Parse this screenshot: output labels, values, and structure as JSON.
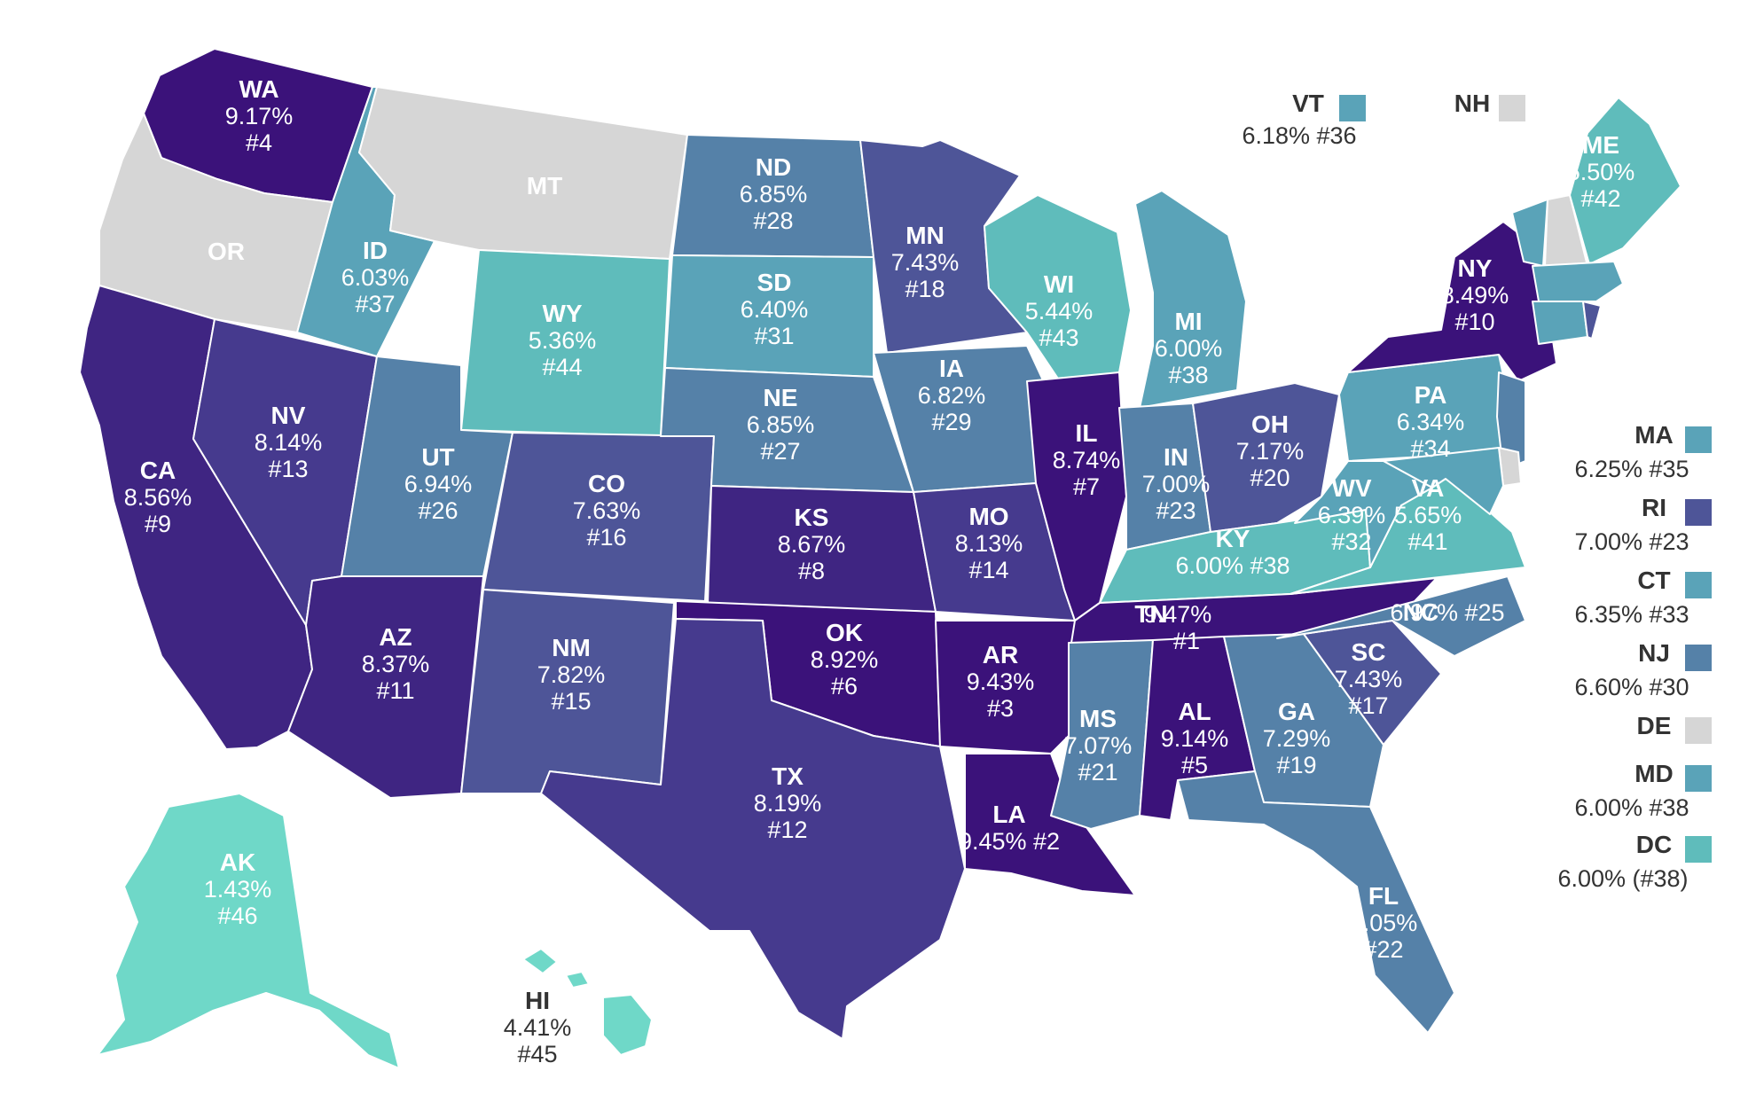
{
  "colors": {
    "no_tax": "#d6d6d6",
    "c1": "#6fd8c8",
    "c2": "#5fbcbb",
    "c3": "#5aa3b8",
    "c4": "#5581a8",
    "c5": "#4e5598",
    "c6": "#463a8e",
    "c7": "#3f2582",
    "c8": "#3b127a"
  },
  "states": [
    {
      "id": "WA",
      "value": "9.17%",
      "rank": "#4",
      "fill": "c8"
    },
    {
      "id": "OR",
      "value": "",
      "rank": "",
      "fill": "no_tax"
    },
    {
      "id": "CA",
      "value": "8.56%",
      "rank": "#9",
      "fill": "c7"
    },
    {
      "id": "NV",
      "value": "8.14%",
      "rank": "#13",
      "fill": "c6"
    },
    {
      "id": "ID",
      "value": "6.03%",
      "rank": "#37",
      "fill": "c3"
    },
    {
      "id": "MT",
      "value": "",
      "rank": "",
      "fill": "no_tax"
    },
    {
      "id": "WY",
      "value": "5.36%",
      "rank": "#44",
      "fill": "c2"
    },
    {
      "id": "UT",
      "value": "6.94%",
      "rank": "#26",
      "fill": "c4"
    },
    {
      "id": "AZ",
      "value": "8.37%",
      "rank": "#11",
      "fill": "c7"
    },
    {
      "id": "CO",
      "value": "7.63%",
      "rank": "#16",
      "fill": "c5"
    },
    {
      "id": "NM",
      "value": "7.82%",
      "rank": "#15",
      "fill": "c5"
    },
    {
      "id": "ND",
      "value": "6.85%",
      "rank": "#28",
      "fill": "c4"
    },
    {
      "id": "SD",
      "value": "6.40%",
      "rank": "#31",
      "fill": "c3"
    },
    {
      "id": "NE",
      "value": "6.85%",
      "rank": "#27",
      "fill": "c4"
    },
    {
      "id": "KS",
      "value": "8.67%",
      "rank": "#8",
      "fill": "c7"
    },
    {
      "id": "OK",
      "value": "8.92%",
      "rank": "#6",
      "fill": "c8"
    },
    {
      "id": "TX",
      "value": "8.19%",
      "rank": "#12",
      "fill": "c6"
    },
    {
      "id": "MN",
      "value": "7.43%",
      "rank": "#18",
      "fill": "c5"
    },
    {
      "id": "IA",
      "value": "6.82%",
      "rank": "#29",
      "fill": "c4"
    },
    {
      "id": "MO",
      "value": "8.13%",
      "rank": "#14",
      "fill": "c6"
    },
    {
      "id": "AR",
      "value": "9.43%",
      "rank": "#3",
      "fill": "c8"
    },
    {
      "id": "LA",
      "value": "9.45%",
      "rank": "#2",
      "fill": "c8"
    },
    {
      "id": "WI",
      "value": "5.44%",
      "rank": "#43",
      "fill": "c2"
    },
    {
      "id": "IL",
      "value": "8.74%",
      "rank": "#7",
      "fill": "c8"
    },
    {
      "id": "MI",
      "value": "6.00%",
      "rank": "#38",
      "fill": "c3"
    },
    {
      "id": "IN",
      "value": "7.00%",
      "rank": "#23",
      "fill": "c4"
    },
    {
      "id": "OH",
      "value": "7.17%",
      "rank": "#20",
      "fill": "c5"
    },
    {
      "id": "KY",
      "value": "6.00%",
      "rank": "#38",
      "fill": "c2"
    },
    {
      "id": "TN",
      "value": "9.47%",
      "rank": "#1",
      "fill": "c8"
    },
    {
      "id": "MS",
      "value": "7.07%",
      "rank": "#21",
      "fill": "c4"
    },
    {
      "id": "AL",
      "value": "9.14%",
      "rank": "#5",
      "fill": "c8"
    },
    {
      "id": "GA",
      "value": "7.29%",
      "rank": "#19",
      "fill": "c4"
    },
    {
      "id": "FL",
      "value": "7.05%",
      "rank": "#22",
      "fill": "c4"
    },
    {
      "id": "SC",
      "value": "7.43%",
      "rank": "#17",
      "fill": "c5"
    },
    {
      "id": "NC",
      "value": "6.97%",
      "rank": "#25",
      "fill": "c4"
    },
    {
      "id": "VA",
      "value": "5.65%",
      "rank": "#41",
      "fill": "c2"
    },
    {
      "id": "WV",
      "value": "6.39%",
      "rank": "#32",
      "fill": "c3"
    },
    {
      "id": "PA",
      "value": "6.34%",
      "rank": "#34",
      "fill": "c3"
    },
    {
      "id": "NY",
      "value": "8.49%",
      "rank": "#10",
      "fill": "c8"
    },
    {
      "id": "ME",
      "value": "5.50%",
      "rank": "#42",
      "fill": "c2"
    },
    {
      "id": "AK",
      "value": "1.43%",
      "rank": "#46",
      "fill": "c1"
    },
    {
      "id": "HI",
      "value": "4.41%",
      "rank": "#45",
      "fill": "c1"
    }
  ],
  "small_states": [
    {
      "id": "VT",
      "label": "6.18% #36",
      "fill": "c3"
    },
    {
      "id": "NH",
      "label": "",
      "fill": "no_tax"
    },
    {
      "id": "MA",
      "label": "6.25% #35",
      "fill": "c3"
    },
    {
      "id": "RI",
      "label": "7.00% #23",
      "fill": "c5"
    },
    {
      "id": "CT",
      "label": "6.35% #33",
      "fill": "c3"
    },
    {
      "id": "NJ",
      "label": "6.60% #30",
      "fill": "c4"
    },
    {
      "id": "DE",
      "label": "",
      "fill": "no_tax"
    },
    {
      "id": "MD",
      "label": "6.00% #38",
      "fill": "c3"
    },
    {
      "id": "DC",
      "label": "6.00% (#38)",
      "fill": "c2"
    }
  ]
}
